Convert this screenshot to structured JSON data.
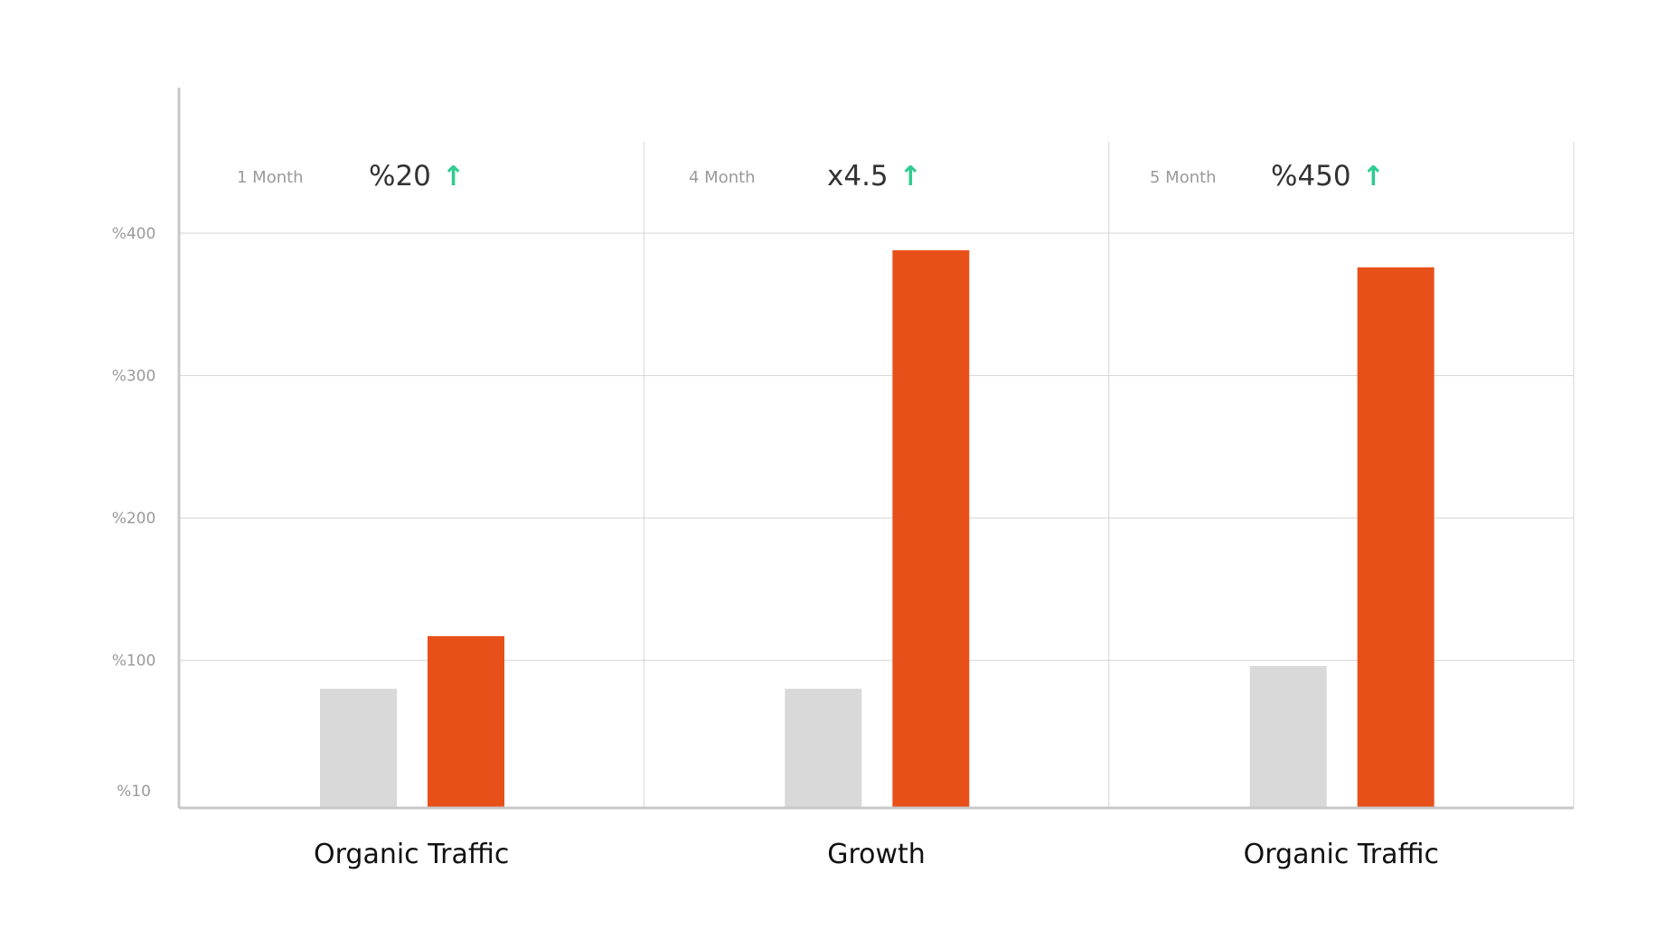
{
  "colors": {
    "baseline_bar": "#d9d9d9",
    "highlight_bar": "#e8501a",
    "up_arrow": "#2ecc8f",
    "grid": "#d4d4d4",
    "axis": "#c8c8c8"
  },
  "chart_data": {
    "type": "bar",
    "categories": [
      "Organic Traffic",
      "Growth",
      "Organic Traffic"
    ],
    "series": [
      {
        "values": [
          80,
          80,
          96
        ]
      },
      {
        "values": [
          117,
          388,
          376
        ]
      }
    ],
    "yticks": [
      {
        "label": "%10",
        "value": 10
      },
      {
        "label": "%100",
        "value": 100
      },
      {
        "label": "%200",
        "value": 200
      },
      {
        "label": "%300",
        "value": 300
      },
      {
        "label": "%400",
        "value": 400
      }
    ],
    "ylim": [
      -3,
      400
    ],
    "panels": [
      {
        "period": "1 Month",
        "metric": "%20",
        "arrow": "↑",
        "icon": "up-arrow-icon"
      },
      {
        "period": "4 Month",
        "metric": "x4.5",
        "arrow": "↑",
        "icon": "up-arrow-icon"
      },
      {
        "period": "5 Month",
        "metric": "%450",
        "arrow": "↑",
        "icon": "up-arrow-icon"
      }
    ],
    "grid": true,
    "legend": "none"
  }
}
